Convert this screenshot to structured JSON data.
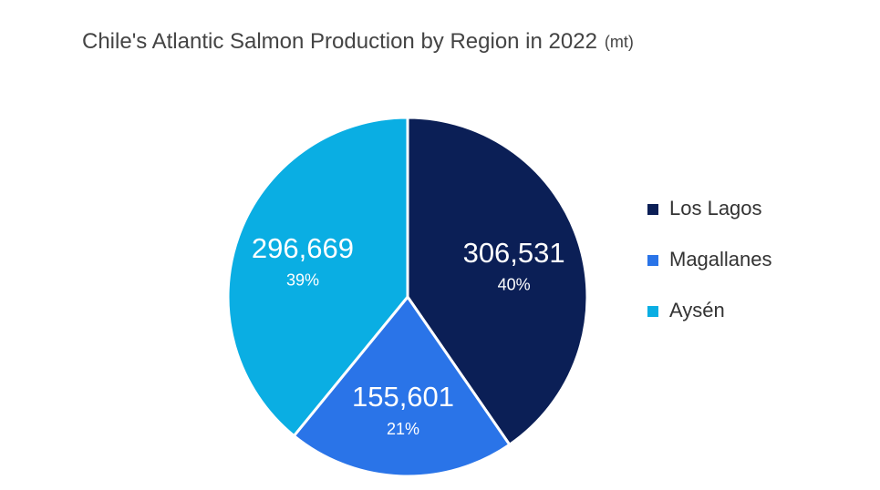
{
  "chart_data": {
    "type": "pie",
    "title": "Chile's Atlantic Salmon Production by Region in 2022",
    "unit": "(mt)",
    "categories": [
      "Los Lagos",
      "Magallanes",
      "Aysén"
    ],
    "values": [
      306531,
      155601,
      296669
    ],
    "value_labels": [
      "306,531",
      "155,601",
      "296,669"
    ],
    "percentages": [
      40,
      21,
      39
    ],
    "percentage_labels": [
      "40%",
      "21%",
      "39%"
    ],
    "colors": [
      "#0b1f56",
      "#2a74e8",
      "#0aaee3"
    ],
    "legend": "right"
  }
}
